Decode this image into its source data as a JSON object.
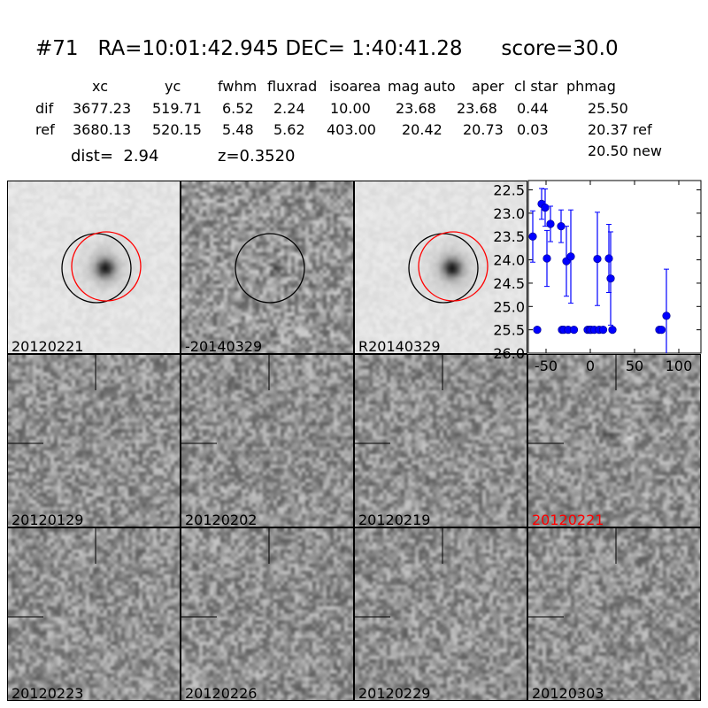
{
  "title": "#71   RA=10:01:42.945 DEC= 1:40:41.28      score=30.0",
  "table": {
    "headers": [
      "xc",
      "yc",
      "fwhm",
      "fluxrad",
      "isoarea",
      "mag auto",
      "aper",
      "cl star",
      "phmag"
    ],
    "dif": {
      "label": "dif",
      "values": [
        "3677.23",
        "519.71",
        "6.52",
        "2.24",
        "10.00",
        "23.68",
        "23.68",
        "0.44",
        "25.50"
      ]
    },
    "ref": {
      "label": "ref",
      "values": [
        "3680.13",
        "520.15",
        "5.48",
        "5.62",
        "403.00",
        "20.42",
        "20.73",
        "0.03",
        "20.37 ref"
      ]
    },
    "new_phmag": "20.50 new"
  },
  "dist": "dist=  2.94",
  "z": "z=0.3520",
  "panels": [
    {
      "label": "20120221",
      "kind": "ref",
      "circles": [
        "black",
        "red"
      ]
    },
    {
      "label": "-20140329",
      "kind": "diff",
      "circles": [
        "black"
      ]
    },
    {
      "label": "R20140329",
      "kind": "ref",
      "circles": [
        "black",
        "red"
      ]
    },
    {
      "label": "20120129",
      "kind": "noise"
    },
    {
      "label": "20120202",
      "kind": "noise"
    },
    {
      "label": "20120219",
      "kind": "noise"
    },
    {
      "label": "20120221",
      "kind": "noise",
      "highlight": true,
      "label_color": "#ff0000"
    },
    {
      "label": "20120223",
      "kind": "noise"
    },
    {
      "label": "20120226",
      "kind": "noise"
    },
    {
      "label": "20120229",
      "kind": "noise"
    },
    {
      "label": "20120303",
      "kind": "noise"
    }
  ],
  "chart_data": {
    "type": "scatter",
    "color": "#0000ff",
    "xlim": [
      -70,
      125
    ],
    "ylim": [
      26.0,
      22.3
    ],
    "y_inverted": true,
    "xticks": [
      "-50",
      "0",
      "50",
      "100"
    ],
    "xtick_values": [
      -50,
      0,
      50,
      100
    ],
    "yticks": [
      "22.5",
      "23.0",
      "23.5",
      "24.0",
      "24.5",
      "25.0",
      "25.5",
      "26.0"
    ],
    "ytick_values": [
      22.5,
      23.0,
      23.5,
      24.0,
      24.5,
      25.0,
      25.5,
      26.0
    ],
    "points": [
      {
        "x": -65,
        "y": 23.5,
        "err": 0.55
      },
      {
        "x": -60,
        "y": 25.5,
        "err": 0.05,
        "limit": true
      },
      {
        "x": -55,
        "y": 22.8,
        "err": 0.33
      },
      {
        "x": -51,
        "y": 22.88,
        "err": 0.4
      },
      {
        "x": -49,
        "y": 23.97,
        "err": 0.6
      },
      {
        "x": -45,
        "y": 23.23,
        "err": 0.38
      },
      {
        "x": -33,
        "y": 23.28,
        "err": 0.35
      },
      {
        "x": -32,
        "y": 25.5,
        "err": 0.05,
        "limit": true
      },
      {
        "x": -30,
        "y": 25.5,
        "err": 0.05,
        "limit": true
      },
      {
        "x": -27,
        "y": 24.03,
        "err": 0.75
      },
      {
        "x": -25,
        "y": 25.5,
        "err": 0.05,
        "limit": true
      },
      {
        "x": -22,
        "y": 23.93,
        "err": 1.0
      },
      {
        "x": -18.5,
        "y": 25.5,
        "err": 0.05,
        "limit": true
      },
      {
        "x": -3,
        "y": 25.5,
        "err": 0.05,
        "limit": true
      },
      {
        "x": -0.5,
        "y": 25.5,
        "err": 0.05,
        "limit": true
      },
      {
        "x": 1,
        "y": 25.5,
        "err": 0.05,
        "limit": true
      },
      {
        "x": 4.5,
        "y": 25.5,
        "err": 0.05,
        "limit": true
      },
      {
        "x": 8,
        "y": 23.98,
        "err": 1.0
      },
      {
        "x": 10,
        "y": 25.5,
        "err": 0.05,
        "limit": true
      },
      {
        "x": 14.5,
        "y": 25.5,
        "err": 0.05,
        "limit": true
      },
      {
        "x": 21,
        "y": 23.97,
        "err": 0.73
      },
      {
        "x": 23,
        "y": 24.4,
        "err": 1.0
      },
      {
        "x": 25,
        "y": 25.5,
        "err": 0.05,
        "limit": true
      },
      {
        "x": 78,
        "y": 25.5,
        "err": 0.05,
        "limit": true
      },
      {
        "x": 80.5,
        "y": 25.5,
        "err": 0.05,
        "limit": true
      },
      {
        "x": 86,
        "y": 25.2,
        "err": 1.0
      }
    ]
  }
}
